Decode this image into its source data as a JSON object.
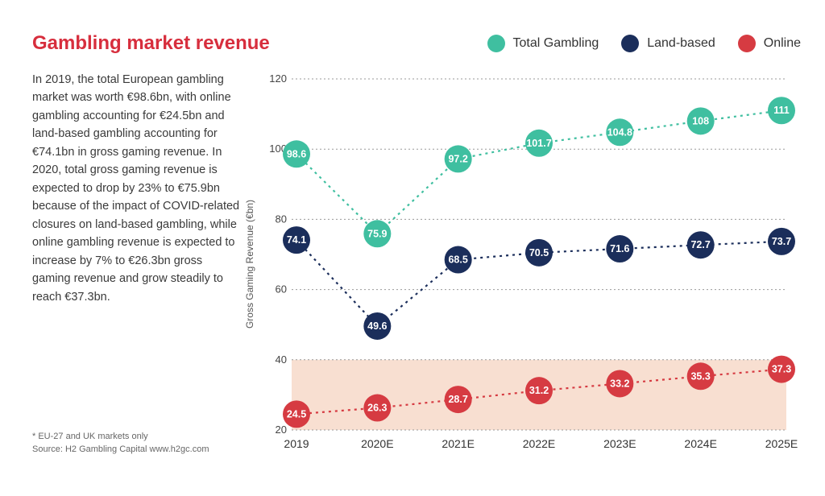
{
  "title": {
    "text": "Gambling market revenue",
    "color": "#d72e3d",
    "fontsize": 24
  },
  "body_text": "In 2019, the total European gambling market was worth €98.6bn, with online gambling accounting for €24.5bn and land-based gambling accounting for €74.1bn in gross gaming revenue. In 2020, total gross gaming revenue is expected to drop by 23% to €75.9bn because of the impact of COVID-related closures on land-based gambling, while online gambling revenue is expected to increase by 7% to €26.3bn gross gaming revenue and grow steadily to reach €37.3bn.",
  "footnote_line1": "* EU-27 and UK markets only",
  "footnote_line2": "Source: H2 Gambling Capital www.h2gc.com",
  "legend": [
    {
      "label": "Total Gambling",
      "color": "#3fbfa0"
    },
    {
      "label": "Land-based",
      "color": "#1b2e5b"
    },
    {
      "label": "Online",
      "color": "#d63b42"
    }
  ],
  "chart": {
    "type": "line",
    "ylabel": "Gross Gaming Revenue (€bn)",
    "ylim": [
      20,
      120
    ],
    "yticks": [
      20,
      40,
      60,
      80,
      100,
      120
    ],
    "categories": [
      "2019",
      "2020E",
      "2021E",
      "2022E",
      "2023E",
      "2024E",
      "2025E"
    ],
    "background_color": "#ffffff",
    "grid_color": "#999999",
    "band": {
      "from": 20,
      "to": 40,
      "fill": "#f7dccc"
    },
    "marker_radius": 17,
    "line_dash": "3 5",
    "series": [
      {
        "name": "Total Gambling",
        "color": "#3fbfa0",
        "values": [
          98.6,
          75.9,
          97.2,
          101.7,
          104.8,
          108,
          111
        ]
      },
      {
        "name": "Land-based",
        "color": "#1b2e5b",
        "values": [
          74.1,
          49.6,
          68.5,
          70.5,
          71.6,
          72.7,
          73.7
        ]
      },
      {
        "name": "Online",
        "color": "#d63b42",
        "values": [
          24.5,
          26.3,
          28.7,
          31.2,
          33.2,
          35.3,
          37.3
        ]
      }
    ],
    "label_fontsize": 12.5,
    "tick_fontsize": 13,
    "xlabel_fontsize": 14
  }
}
